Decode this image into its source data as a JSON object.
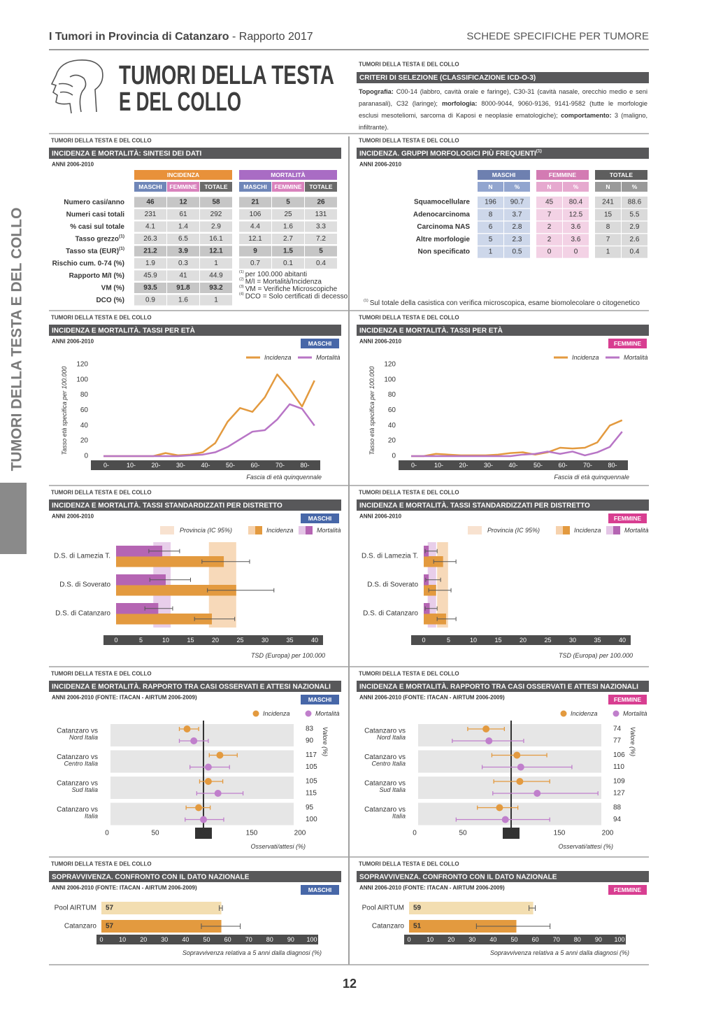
{
  "header": {
    "title_bold": "I Tumori in Provincia di Catanzaro",
    "title_rest": "- Rapporto 2017",
    "section": "SCHEDE SPECIFICHE PER TUMORE"
  },
  "title_lines": [
    "TUMORI DELLA TESTA",
    "E DEL COLLO"
  ],
  "side_label": "TUMORI DELLA TESTA E DEL COLLO",
  "page_number": "12",
  "criteria": {
    "kicker": "TUMORI DELLA TESTA E DEL COLLO",
    "heading": "CRITERI DI SELEZIONE (CLASSIFICAZIONE ICD-O-3)",
    "text": [
      {
        "text": "Topografia:",
        "bold": true
      },
      {
        "text": " C00-14 (labbro, cavità orale e faringe), C30-31 (cavità nasale, orecchio medio e seni paranasali), C32 (laringe); ",
        "bold": false
      },
      {
        "text": "morfologia:",
        "bold": true
      },
      {
        "text": " 8000-9044, 9060-9136, 9141-9582 (tutte le morfologie esclusi mesoteliomi, sarcoma di Kaposi e neoplasie ematologiche); ",
        "bold": false
      },
      {
        "text": "comportamento:",
        "bold": true
      },
      {
        "text": " 3 (maligno, infiltrante).",
        "bold": false
      }
    ]
  },
  "summary": {
    "kicker": "TUMORI DELLA TESTA E DEL COLLO",
    "heading": "INCIDENZA E MORTALITÀ: SINTESI DEI DATI",
    "period": "ANNI 2006-2010",
    "groups": [
      {
        "name": "INCIDENZA",
        "color": "#e8913a"
      },
      {
        "name": "MORTALITÀ",
        "color": "#a96cc4"
      }
    ],
    "columns": [
      {
        "name": "MASCHI",
        "color": "#6f86b8"
      },
      {
        "name": "FEMMINE",
        "color": "#d982bd"
      },
      {
        "name": "TOTALE",
        "color": "#6b6b6b"
      }
    ],
    "rows": [
      {
        "label": "Numero casi/anno",
        "bold": true,
        "values": [
          46,
          12,
          58,
          21,
          5,
          26
        ]
      },
      {
        "label": "Numeri casi totali",
        "values": [
          231,
          61,
          292,
          106,
          25,
          131
        ]
      },
      {
        "label": "% casi sul totale",
        "values": [
          4.1,
          1.4,
          2.9,
          4.4,
          1.6,
          3.3
        ]
      },
      {
        "label": "Tasso grezzo",
        "sup": "(1)",
        "values": [
          26.3,
          6.5,
          16.1,
          12.1,
          2.7,
          7.2
        ]
      },
      {
        "label": "Tasso sta (EUR)",
        "sup": "(1)",
        "bold": true,
        "values": [
          21.2,
          3.9,
          12.1,
          9,
          1.5,
          5
        ]
      },
      {
        "label": "Rischio cum. 0-74 (%)",
        "values": [
          1.9,
          0.3,
          1,
          0.7,
          0.1,
          0.4
        ]
      },
      {
        "label": "Rapporto M/I (%)",
        "values": [
          45.9,
          41,
          44.9
        ]
      },
      {
        "label": "VM (%)",
        "bold": true,
        "values": [
          93.5,
          91.8,
          93.2
        ]
      },
      {
        "label": "DCO (%)",
        "values": [
          0.9,
          1.6,
          1
        ]
      }
    ],
    "notes": [
      {
        "sup": "(1)",
        "text": "per 100.000 abitanti"
      },
      {
        "sup": "(2)",
        "text": "M/I = Mortalità/Incidenza"
      },
      {
        "sup": "(3)",
        "text": "VM = Verifiche Microscopiche"
      },
      {
        "sup": "(4)",
        "text": "DCO = Solo certificati di decesso"
      }
    ]
  },
  "morphology": {
    "kicker": "TUMORI DELLA TESTA E DEL COLLO",
    "heading": "INCIDENZA. GRUPPI MORFOLOGICI PIÙ FREQUENTI",
    "heading_sup": "(1)",
    "period": "ANNI 2006-2010",
    "groups": [
      {
        "name": "MASCHI",
        "color": "#6e80b0",
        "sub_color": "#92a5cf",
        "cell_color": "#cdd7ea"
      },
      {
        "name": "FEMMINE",
        "color": "#d37bb3",
        "sub_color": "#e6a9cf",
        "cell_color": "#f3d2e5"
      },
      {
        "name": "TOTALE",
        "color": "#5e5e5e",
        "sub_color": "#9a9a9a",
        "cell_color": "#dadada"
      }
    ],
    "subcolumns": [
      "N",
      "%"
    ],
    "rows": [
      {
        "label": "Squamocellulare",
        "values": [
          196,
          90.7,
          45,
          80.4,
          241,
          88.6
        ]
      },
      {
        "label": "Adenocarcinoma",
        "values": [
          8,
          3.7,
          7,
          12.5,
          15,
          5.5
        ]
      },
      {
        "label": "Carcinoma NAS",
        "values": [
          6,
          2.8,
          2,
          3.6,
          8,
          2.9
        ]
      },
      {
        "label": "Altre morfologie",
        "values": [
          5,
          2.3,
          2,
          3.6,
          7,
          2.6
        ]
      },
      {
        "label": "Non specificato",
        "values": [
          1,
          0.5,
          0,
          0,
          1,
          0.4
        ]
      }
    ],
    "note": {
      "sup": "(1)",
      "text": "Sul totale della casistica con verifica microscopica, esame biomolecolare o citogenetico"
    }
  },
  "age_rates": [
    {
      "kicker": "TUMORI DELLA TESTA E DEL COLLO",
      "heading": "INCIDENZA E MORTALITÀ. TASSI PER ETÀ",
      "period": "ANNI 2006-2010",
      "badge": {
        "text": "MASCHI",
        "color": "#4767a8"
      },
      "chart": {
        "type": "line",
        "categories": [
          "0-",
          null,
          "10-",
          null,
          "20-",
          null,
          "30-",
          null,
          "40-",
          null,
          "50-",
          null,
          "60-",
          null,
          "70-",
          null,
          "80-",
          null
        ],
        "ylim": [
          0,
          120
        ],
        "yticks": [
          0,
          20,
          40,
          60,
          80,
          100,
          120
        ],
        "ylabel": "Tasso età specifica per 100.000",
        "xlabel": "Fascia di età quinquennale",
        "series": [
          {
            "name": "Incidenza",
            "color": "#e39a3f",
            "values": [
              0,
              0,
              0,
              0,
              0,
              4,
              1,
              2,
              5,
              17,
              45,
              63,
              58,
              77,
              107,
              88,
              65,
              99
            ]
          },
          {
            "name": "Mortalità",
            "color": "#b875c6",
            "values": [
              0,
              0,
              0,
              0,
              0,
              0,
              0,
              1,
              2,
              5,
              12,
              22,
              32,
              34,
              48,
              68,
              62,
              40
            ]
          }
        ]
      }
    },
    {
      "kicker": "TUMORI DELLA TESTA E DEL COLLO",
      "heading": "INCIDENZA E MORTALITÀ. TASSI PER ETÀ",
      "period": "ANNI 2006-2010",
      "badge": {
        "text": "FEMMINE",
        "color": "#d83e91"
      },
      "chart": {
        "type": "line",
        "categories": [
          "0-",
          null,
          "10-",
          null,
          "20-",
          null,
          "30-",
          null,
          "40-",
          null,
          "50-",
          null,
          "60-",
          null,
          "70-",
          null,
          "80-",
          null
        ],
        "ylim": [
          0,
          120
        ],
        "yticks": [
          0,
          20,
          40,
          60,
          80,
          100,
          120
        ],
        "ylabel": "Tasso età specifica per 100.000",
        "xlabel": "Fascia di età quinquennale",
        "series": [
          {
            "name": "Incidenza",
            "color": "#e39a3f",
            "values": [
              0,
              0,
              3,
              2,
              1,
              1,
              1,
              2,
              4,
              5,
              2,
              5,
              11,
              10,
              11,
              18,
              40,
              47
            ]
          },
          {
            "name": "Mortalità",
            "color": "#b875c6",
            "values": [
              0,
              0,
              0,
              0,
              0,
              0,
              0,
              0,
              0,
              2,
              3,
              6,
              3,
              6,
              1,
              5,
              12,
              32
            ]
          }
        ]
      }
    }
  ],
  "district_rates": [
    {
      "kicker": "TUMORI DELLA TESTA E DEL COLLO",
      "heading": "INCIDENZA E MORTALITÀ. TASSI STANDARDIZZATI PER DISTRETTO",
      "period": "ANNI 2006-2010",
      "badge": {
        "text": "MASCHI",
        "color": "#4767a8"
      },
      "chart": {
        "type": "hbar",
        "categories": [
          "D.S. di Lamezia T.",
          "D.S. di Soverato",
          "D.S. di Catanzaro"
        ],
        "xlim": [
          0,
          40
        ],
        "xticks": [
          0,
          5,
          10,
          15,
          20,
          25,
          30,
          35,
          40
        ],
        "xlabel": "TSD (Europa) per 100.000",
        "band_label": "Provincia (IC 95%)",
        "series": [
          {
            "name": "Incidenza",
            "color": "#e39a3f",
            "band_color": "#f6d2ad",
            "values": [
              21.7,
              24.2,
              19.3
            ],
            "low": [
              17.3,
              18.4,
              15.8
            ],
            "high": [
              26.9,
              31.8,
              23.9
            ],
            "province": [
              18.7,
              24.2
            ]
          },
          {
            "name": "Mortalità",
            "color": "#b565b3",
            "band_color": "#e4c6e6",
            "values": [
              9.3,
              10,
              8.5
            ],
            "low": [
              6.6,
              6.8,
              5.8
            ],
            "high": [
              12.8,
              15,
              11.4
            ],
            "province": [
              7.5,
              11
            ]
          }
        ]
      }
    },
    {
      "kicker": "TUMORI DELLA TESTA E DEL COLLO",
      "heading": "INCIDENZA E MORTALITÀ. TASSI STANDARDIZZATI PER DISTRETTO",
      "period": "ANNI 2006-2010",
      "badge": {
        "text": "FEMMINE",
        "color": "#d83e91"
      },
      "chart": {
        "type": "hbar",
        "categories": [
          "D.S. di Lamezia T.",
          "D.S. di Soverato",
          "D.S. di Catanzaro"
        ],
        "xlim": [
          0,
          40
        ],
        "xticks": [
          0,
          5,
          10,
          15,
          20,
          25,
          30,
          35,
          40
        ],
        "xlabel": "TSD (Europa) per 100.000",
        "band_label": "Provincia (IC 95%)",
        "series": [
          {
            "name": "Incidenza",
            "color": "#e39a3f",
            "band_color": "#f6d2ad",
            "values": [
              3.9,
              2.5,
              4.5
            ],
            "low": [
              2,
              1,
              2.7
            ],
            "high": [
              6.5,
              5.5,
              6.5
            ],
            "province": [
              2.7,
              4.9
            ]
          },
          {
            "name": "Mortalità",
            "color": "#b565b3",
            "band_color": "#e4c6e6",
            "values": [
              1,
              1,
              1.2
            ],
            "low": [
              0.3,
              0.4,
              0.3
            ],
            "high": [
              2.7,
              3.4,
              2.7
            ],
            "province": [
              0.8,
              2.5
            ]
          }
        ]
      }
    }
  ],
  "observed_expected": [
    {
      "kicker": "TUMORI DELLA TESTA E DEL COLLO",
      "heading": "INCIDENZA E MORTALITÀ. RAPPORTO TRA CASI OSSERVATI E ATTESI NAZIONALI",
      "period": "ANNI 2006-2010 (FONTE: ITACAN - AIRTUM 2006-2009)",
      "badge": {
        "text": "MASCHI",
        "color": "#4767a8"
      },
      "chart": {
        "type": "dot",
        "categories": [
          {
            "label": "Catanzaro vs",
            "sub": "Nord Italia"
          },
          {
            "label": "Catanzaro vs",
            "sub": "Centro Italia"
          },
          {
            "label": "Catanzaro vs",
            "sub": "Sud Italia"
          },
          {
            "label": "Catanzaro vs",
            "sub": "Italia"
          }
        ],
        "xlim": [
          0,
          200
        ],
        "xticks": [
          0,
          50,
          100,
          150,
          200
        ],
        "reference_line": 100,
        "xlabel": "Osservati/attesi (%)",
        "value_label": "Valore (%)",
        "series": [
          {
            "name": "Incidenza",
            "color": "#e39a3f",
            "values": [
              83,
              117,
              105,
              95
            ],
            "low": [
              75,
              106,
              96,
              82
            ],
            "high": [
              95,
              135,
              120,
              107
            ]
          },
          {
            "name": "Mortalità",
            "color": "#c07fcc",
            "values": [
              90,
              105,
              115,
              100
            ],
            "low": [
              75,
              86,
              93,
              81
            ],
            "high": [
              105,
              127,
              141,
              121
            ]
          }
        ]
      }
    },
    {
      "kicker": "TUMORI DELLA TESTA E DEL COLLO",
      "heading": "INCIDENZA E MORTALITÀ. RAPPORTO TRA CASI OSSERVATI E ATTESI NAZIONALI",
      "period": "ANNI 2006-2010 (FONTE: ITACAN - AIRTUM 2006-2009)",
      "badge": {
        "text": "FEMMINE",
        "color": "#d83e91"
      },
      "chart": {
        "type": "dot",
        "categories": [
          {
            "label": "Catanzaro vs",
            "sub": "Nord Italia"
          },
          {
            "label": "Catanzaro vs",
            "sub": "Centro Italia"
          },
          {
            "label": "Catanzaro vs",
            "sub": "Sud Italia"
          },
          {
            "label": "Catanzaro vs",
            "sub": "Italia"
          }
        ],
        "xlim": [
          0,
          200
        ],
        "xticks": [
          0,
          50,
          100,
          150,
          200
        ],
        "reference_line": 100,
        "xlabel": "Osservati/attesi (%)",
        "value_label": "Valore (%)",
        "series": [
          {
            "name": "Incidenza",
            "color": "#e39a3f",
            "values": [
              74,
              106,
              109,
              88
            ],
            "low": [
              55,
              80,
              82,
              65
            ],
            "high": [
              93,
              137,
              140,
              107
            ]
          },
          {
            "name": "Mortalità",
            "color": "#c07fcc",
            "values": [
              77,
              110,
              127,
              94
            ],
            "low": [
              39,
              70,
              81,
              43
            ],
            "high": [
              113,
              163,
              190,
              140
            ]
          }
        ]
      }
    }
  ],
  "survival": [
    {
      "kicker": "TUMORI DELLA TESTA E DEL COLLO",
      "heading": "SOPRAVVIVENZA. CONFRONTO CON IL DATO NAZIONALE",
      "period": "ANNI 2006-2010 (FONTE: ITACAN - AIRTUM 2006-2009)",
      "badge": {
        "text": "MASCHI",
        "color": "#4767a8"
      },
      "chart": {
        "type": "hbar",
        "categories": [
          "Pool AIRTUM",
          "Catanzaro"
        ],
        "colors": [
          "#f3deb1",
          "#e39a3f"
        ],
        "values": [
          57,
          57
        ],
        "low": [
          56,
          47.5
        ],
        "high": [
          57.5,
          66
        ],
        "xlim": [
          0,
          100
        ],
        "xticks": [
          0,
          10,
          20,
          30,
          40,
          50,
          60,
          70,
          80,
          90,
          100
        ],
        "xlabel": "Sopravvivenza relativa a 5 anni dalla diagnosi (%)"
      }
    },
    {
      "kicker": "TUMORI DELLA TESTA E DEL COLLO",
      "heading": "SOPRAVVIVENZA. CONFRONTO CON IL DATO NAZIONALE",
      "period": "ANNI 2006-2010 (FONTE: ITACAN - AIRTUM 2006-2009)",
      "badge": {
        "text": "FEMMINE",
        "color": "#d83e91"
      },
      "chart": {
        "type": "hbar",
        "categories": [
          "Pool AIRTUM",
          "Catanzaro"
        ],
        "colors": [
          "#f3deb1",
          "#e39a3f"
        ],
        "values": [
          59,
          51
        ],
        "low": [
          57,
          32
        ],
        "high": [
          60,
          67
        ],
        "xlim": [
          0,
          100
        ],
        "xticks": [
          0,
          10,
          20,
          30,
          40,
          50,
          60,
          70,
          80,
          90,
          100
        ],
        "xlabel": "Sopravvivenza relativa a 5 anni dalla diagnosi (%)"
      }
    }
  ]
}
